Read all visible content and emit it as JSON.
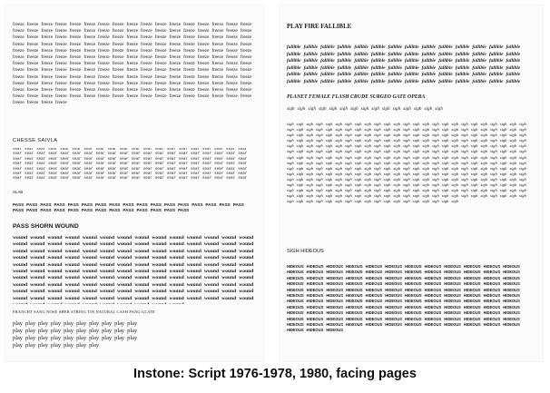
{
  "caption": "Instone: Script 1976-1978, 1980, facing pages",
  "left_page": {
    "freeze_word": "freeze",
    "freeze_count": 208,
    "chesse_heading": "CHESSE SAIVLA",
    "sear_word": "sear",
    "sear_count": 175,
    "slab_heading": "SLAB",
    "pass_word": "PASS",
    "pass_count": 30,
    "pass_shorn_heading": "PASS SHORN WOUND",
    "wound_word": "wound",
    "wound_count": 150,
    "franchy_heading": "FRANCHT SANG NOSE SHEB STRING TIN NATURAL CASH PANG GLATE",
    "play_word": "play",
    "play_count": 37
  },
  "right_page": {
    "play_fire_heading": "PLAY FIRE FALLIBLE",
    "fallible_word": "fallible",
    "fallible_count": 84,
    "planet_heading": "PLANET FEMALE FLASH CRUDE SURGEO GATE OPERA",
    "sigh_word": "sigh",
    "sigh_heading_count": 15,
    "sigh_count": 368,
    "sigh_hideous_heading": "SIGH HIDEOUS",
    "hideous_word": "HIDEOUS",
    "hideous_count": 135
  }
}
